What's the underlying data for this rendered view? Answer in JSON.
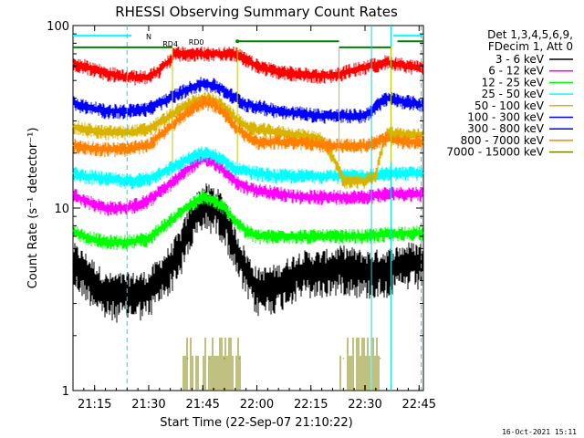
{
  "chart_data": {
    "type": "line",
    "title": "RHESSI Observing Summary Count Rates",
    "ylabel": "Count Rate (s⁻¹ detector⁻¹)",
    "xlabel": "Start Time (22-Sep-07 21:10:22)",
    "yscale": "log",
    "ylim": [
      1,
      100
    ],
    "xlim_minutes": [
      21.15,
      22.77
    ],
    "y_ticks": [
      {
        "value": 1,
        "label": "1"
      },
      {
        "value": 10,
        "label": "10"
      },
      {
        "value": 100,
        "label": "100"
      }
    ],
    "x_ticks": [
      {
        "value": 21.25,
        "label": "21:15"
      },
      {
        "value": 21.5,
        "label": "21:30"
      },
      {
        "value": 21.75,
        "label": "21:45"
      },
      {
        "value": 22.0,
        "label": "22:00"
      },
      {
        "value": 22.25,
        "label": "22:15"
      },
      {
        "value": 22.5,
        "label": "22:30"
      },
      {
        "value": 22.75,
        "label": "22:45"
      }
    ],
    "legend_header": [
      "Det 1,3,4,5,6,9,",
      "FDecim 1, Att 0"
    ],
    "legend_placement": "right",
    "series": [
      {
        "name": "3 - 6 keV",
        "color": "#000000",
        "kind": "band",
        "values": [
          [
            21.15,
            5.0
          ],
          [
            21.2,
            4.5
          ],
          [
            21.3,
            3.4
          ],
          [
            21.4,
            3.4
          ],
          [
            21.5,
            3.5
          ],
          [
            21.6,
            4.8
          ],
          [
            21.65,
            6.0
          ],
          [
            21.7,
            8.5
          ],
          [
            21.75,
            10.5
          ],
          [
            21.8,
            10.3
          ],
          [
            21.85,
            9.0
          ],
          [
            21.9,
            6.0
          ],
          [
            21.95,
            4.5
          ],
          [
            22.0,
            3.6
          ],
          [
            22.1,
            3.8
          ],
          [
            22.2,
            4.5
          ],
          [
            22.3,
            4.5
          ],
          [
            22.4,
            4.8
          ],
          [
            22.5,
            4.5
          ],
          [
            22.6,
            4.6
          ],
          [
            22.7,
            5.0
          ],
          [
            22.77,
            5.0
          ]
        ]
      },
      {
        "name": "6 - 12 keV",
        "color": "#ff00ff",
        "kind": "band",
        "values": [
          [
            21.15,
            12.0
          ],
          [
            21.2,
            11.0
          ],
          [
            21.3,
            10.0
          ],
          [
            21.4,
            10.0
          ],
          [
            21.5,
            11.0
          ],
          [
            21.6,
            13.5
          ],
          [
            21.7,
            17.0
          ],
          [
            21.75,
            18.5
          ],
          [
            21.8,
            18.0
          ],
          [
            21.85,
            16.0
          ],
          [
            21.9,
            14.0
          ],
          [
            21.95,
            13.0
          ],
          [
            22.0,
            12.5
          ],
          [
            22.1,
            12.0
          ],
          [
            22.2,
            11.5
          ],
          [
            22.3,
            11.5
          ],
          [
            22.4,
            11.5
          ],
          [
            22.5,
            11.5
          ],
          [
            22.6,
            12.0
          ],
          [
            22.7,
            12.0
          ],
          [
            22.77,
            12.0
          ]
        ]
      },
      {
        "name": "12 - 25 keV",
        "color": "#00ff00",
        "kind": "band",
        "values": [
          [
            21.15,
            7.5
          ],
          [
            21.2,
            7.0
          ],
          [
            21.3,
            6.5
          ],
          [
            21.4,
            6.5
          ],
          [
            21.5,
            6.8
          ],
          [
            21.6,
            8.5
          ],
          [
            21.7,
            10.5
          ],
          [
            21.75,
            11.5
          ],
          [
            21.8,
            11.0
          ],
          [
            21.85,
            10.0
          ],
          [
            21.9,
            8.5
          ],
          [
            21.95,
            7.5
          ],
          [
            22.0,
            7.0
          ],
          [
            22.1,
            7.0
          ],
          [
            22.2,
            7.0
          ],
          [
            22.3,
            7.0
          ],
          [
            22.4,
            7.0
          ],
          [
            22.5,
            7.0
          ],
          [
            22.6,
            7.2
          ],
          [
            22.7,
            7.3
          ],
          [
            22.77,
            7.3
          ]
        ]
      },
      {
        "name": "25 - 50 keV",
        "color": "#00ffff",
        "kind": "band",
        "values": [
          [
            21.15,
            15.5
          ],
          [
            21.2,
            15.0
          ],
          [
            21.3,
            14.5
          ],
          [
            21.4,
            14.0
          ],
          [
            21.5,
            14.5
          ],
          [
            21.6,
            16.5
          ],
          [
            21.7,
            19.0
          ],
          [
            21.75,
            20.0
          ],
          [
            21.8,
            19.5
          ],
          [
            21.85,
            18.0
          ],
          [
            21.9,
            16.5
          ],
          [
            21.95,
            16.0
          ],
          [
            22.0,
            15.5
          ],
          [
            22.1,
            15.0
          ],
          [
            22.2,
            15.0
          ],
          [
            22.3,
            15.0
          ],
          [
            22.4,
            15.0
          ],
          [
            22.5,
            15.0
          ],
          [
            22.6,
            15.5
          ],
          [
            22.7,
            15.5
          ],
          [
            22.77,
            15.5
          ]
        ]
      },
      {
        "name": "50 - 100 keV",
        "color": "#d8b400",
        "kind": "band",
        "values": [
          [
            21.15,
            28.0
          ],
          [
            21.2,
            27.0
          ],
          [
            21.3,
            26.0
          ],
          [
            21.4,
            26.0
          ],
          [
            21.5,
            27.0
          ],
          [
            21.6,
            32.0
          ],
          [
            21.7,
            38.0
          ],
          [
            21.75,
            40.0
          ],
          [
            21.8,
            39.0
          ],
          [
            21.85,
            36.0
          ],
          [
            21.9,
            31.0
          ],
          [
            21.95,
            28.0
          ],
          [
            22.0,
            27.0
          ],
          [
            22.1,
            26.0
          ],
          [
            22.2,
            25.0
          ],
          [
            22.3,
            24.0
          ],
          [
            22.4,
            14.0
          ],
          [
            22.5,
            14.0
          ],
          [
            22.55,
            15.0
          ],
          [
            22.6,
            26.0
          ],
          [
            22.7,
            25.0
          ],
          [
            22.77,
            25.0
          ]
        ]
      },
      {
        "name": "100 - 300 keV",
        "color": "#0000ff",
        "kind": "band",
        "values": [
          [
            21.15,
            38.0
          ],
          [
            21.2,
            36.0
          ],
          [
            21.3,
            34.0
          ],
          [
            21.4,
            34.0
          ],
          [
            21.5,
            35.0
          ],
          [
            21.6,
            40.0
          ],
          [
            21.7,
            46.0
          ],
          [
            21.75,
            48.0
          ],
          [
            21.8,
            47.0
          ],
          [
            21.85,
            44.0
          ],
          [
            21.9,
            40.0
          ],
          [
            21.95,
            37.0
          ],
          [
            22.0,
            36.0
          ],
          [
            22.1,
            34.0
          ],
          [
            22.2,
            33.0
          ],
          [
            22.3,
            32.0
          ],
          [
            22.4,
            32.0
          ],
          [
            22.5,
            32.0
          ],
          [
            22.6,
            40.0
          ],
          [
            22.7,
            38.0
          ],
          [
            22.77,
            37.0
          ]
        ]
      },
      {
        "name": "800 - 7000 keV",
        "color": "#ff8000",
        "kind": "band",
        "values": [
          [
            21.15,
            22.0
          ],
          [
            21.2,
            21.5
          ],
          [
            21.3,
            21.0
          ],
          [
            21.4,
            21.0
          ],
          [
            21.5,
            22.0
          ],
          [
            21.6,
            28.0
          ],
          [
            21.7,
            35.0
          ],
          [
            21.75,
            38.0
          ],
          [
            21.8,
            37.0
          ],
          [
            21.85,
            33.0
          ],
          [
            21.9,
            28.0
          ],
          [
            21.95,
            25.0
          ],
          [
            22.0,
            23.0
          ],
          [
            22.1,
            23.0
          ],
          [
            22.2,
            23.0
          ],
          [
            22.3,
            22.0
          ],
          [
            22.4,
            22.0
          ],
          [
            22.5,
            22.0
          ],
          [
            22.6,
            24.0
          ],
          [
            22.7,
            23.0
          ],
          [
            22.77,
            23.0
          ]
        ]
      },
      {
        "name": "300 - 800 keV",
        "color": "#ff0000",
        "kind": "band",
        "values": [
          [
            21.15,
            62.0
          ],
          [
            21.2,
            60.0
          ],
          [
            21.3,
            55.0
          ],
          [
            21.4,
            52.0
          ],
          [
            21.5,
            52.0
          ],
          [
            21.55,
            57.0
          ],
          [
            21.6,
            65.0
          ],
          [
            21.62,
            70.0
          ],
          [
            21.9,
            70.0
          ],
          [
            21.95,
            65.0
          ],
          [
            22.0,
            60.0
          ],
          [
            22.1,
            56.0
          ],
          [
            22.2,
            54.0
          ],
          [
            22.3,
            53.0
          ],
          [
            22.35,
            53.0
          ],
          [
            22.6,
            63.0
          ],
          [
            22.7,
            60.0
          ],
          [
            22.77,
            58.0
          ]
        ]
      },
      {
        "name": "7000 - 15000 keV",
        "color": "#808000",
        "kind": "spikes",
        "values": [
          [
            21.68,
            1.5
          ],
          [
            21.78,
            1.5
          ],
          [
            21.85,
            1.5
          ],
          [
            21.92,
            1.5
          ],
          [
            22.4,
            1.5
          ],
          [
            22.57,
            1.5
          ]
        ]
      }
    ],
    "attenuator_labels": [
      {
        "label": "N",
        "time": 21.5
      },
      {
        "label": "RD4",
        "time": 21.6
      },
      {
        "label": "RD0",
        "time": 21.72
      }
    ],
    "time_stamp": "16-Oct-2021 15:11"
  }
}
